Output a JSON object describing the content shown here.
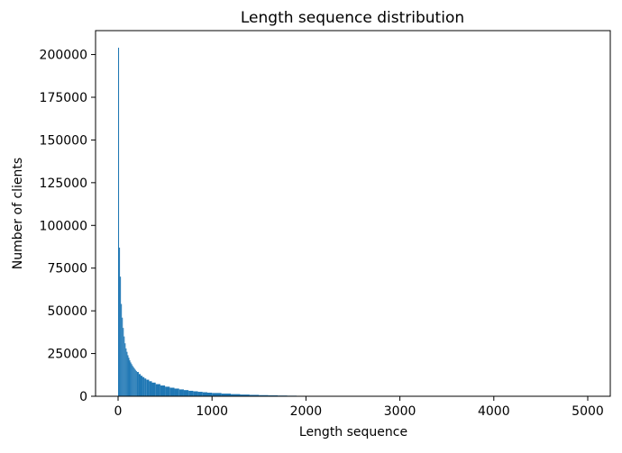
{
  "chart_data": {
    "type": "bar",
    "title": "Length sequence distribution",
    "xlabel": "Length sequence",
    "ylabel": "Number of clients",
    "xlim": [
      -240,
      5240
    ],
    "ylim": [
      0,
      214000
    ],
    "xticks": [
      0,
      1000,
      2000,
      3000,
      4000,
      5000
    ],
    "yticks": [
      0,
      25000,
      50000,
      75000,
      100000,
      125000,
      150000,
      175000,
      200000
    ],
    "grid": false,
    "bar_color": "#1f77b4",
    "bin_width": 10,
    "x": [
      0,
      10,
      20,
      30,
      40,
      50,
      60,
      70,
      80,
      90,
      100,
      110,
      120,
      130,
      140,
      150,
      160,
      170,
      180,
      190,
      200,
      220,
      240,
      260,
      280,
      300,
      330,
      360,
      400,
      450,
      500,
      550,
      600,
      650,
      700,
      750,
      800,
      850,
      900,
      950,
      1000,
      1100,
      1200,
      1300,
      1400,
      1500,
      1600,
      1700,
      1800,
      1900,
      2000,
      2100,
      2200,
      2300,
      2400,
      2500,
      2700,
      2900,
      3100,
      3300,
      3500,
      3800,
      4100,
      4400,
      4700,
      4990
    ],
    "values": [
      204000,
      87000,
      70000,
      54000,
      46000,
      40000,
      35000,
      31000,
      28000,
      26000,
      24000,
      22500,
      21000,
      19800,
      18800,
      17800,
      17000,
      16200,
      15500,
      14800,
      14200,
      13000,
      12000,
      11200,
      10400,
      9700,
      8800,
      8000,
      7100,
      6300,
      5600,
      5000,
      4500,
      4000,
      3600,
      3200,
      2900,
      2600,
      2350,
      2100,
      1900,
      1550,
      1250,
      1000,
      820,
      660,
      530,
      420,
      330,
      260,
      200,
      150,
      110,
      80,
      60,
      40,
      25,
      15,
      10,
      7,
      5,
      3,
      2,
      2,
      1,
      300
    ]
  }
}
